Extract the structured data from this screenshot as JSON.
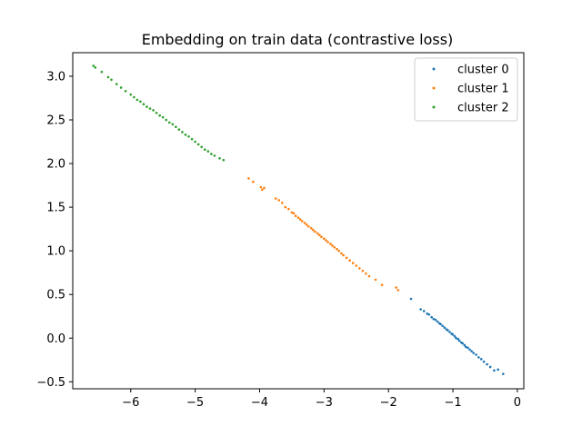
{
  "chart_data": {
    "type": "scatter",
    "title": "Embedding on train data (contrastive loss)",
    "xlabel": "",
    "ylabel": "",
    "xlim": [
      -6.9,
      0.1
    ],
    "ylim": [
      -0.58,
      3.27
    ],
    "xticks": [
      -6,
      -5,
      -4,
      -3,
      -2,
      -1,
      0
    ],
    "xtick_labels": [
      "−6",
      "−5",
      "−4",
      "−3",
      "−2",
      "−1",
      "0"
    ],
    "yticks": [
      -0.5,
      0.0,
      0.5,
      1.0,
      1.5,
      2.0,
      2.5,
      3.0
    ],
    "ytick_labels": [
      "−0.5",
      "0.0",
      "0.5",
      "1.0",
      "1.5",
      "2.0",
      "2.5",
      "3.0"
    ],
    "grid": false,
    "legend_position": "top-right",
    "series": [
      {
        "name": "cluster 0",
        "color": "#1f77b4",
        "points": [
          [
            -1.65,
            0.45
          ],
          [
            -1.5,
            0.33
          ],
          [
            -1.45,
            0.31
          ],
          [
            -1.4,
            0.28
          ],
          [
            -1.37,
            0.27
          ],
          [
            -1.33,
            0.24
          ],
          [
            -1.3,
            0.22
          ],
          [
            -1.27,
            0.21
          ],
          [
            -1.24,
            0.19
          ],
          [
            -1.21,
            0.17
          ],
          [
            -1.19,
            0.16
          ],
          [
            -1.16,
            0.14
          ],
          [
            -1.13,
            0.12
          ],
          [
            -1.1,
            0.1
          ],
          [
            -1.08,
            0.09
          ],
          [
            -1.05,
            0.07
          ],
          [
            -1.02,
            0.05
          ],
          [
            -1.0,
            0.04
          ],
          [
            -0.97,
            0.02
          ],
          [
            -0.95,
            0.0
          ],
          [
            -0.92,
            -0.01
          ],
          [
            -0.9,
            -0.03
          ],
          [
            -0.87,
            -0.05
          ],
          [
            -0.85,
            -0.06
          ],
          [
            -0.82,
            -0.08
          ],
          [
            -0.8,
            -0.1
          ],
          [
            -0.77,
            -0.11
          ],
          [
            -0.74,
            -0.13
          ],
          [
            -0.71,
            -0.15
          ],
          [
            -0.68,
            -0.17
          ],
          [
            -0.64,
            -0.19
          ],
          [
            -0.6,
            -0.22
          ],
          [
            -0.56,
            -0.24
          ],
          [
            -0.52,
            -0.27
          ],
          [
            -0.47,
            -0.3
          ],
          [
            -0.42,
            -0.33
          ],
          [
            -0.36,
            -0.37
          ],
          [
            -0.3,
            -0.36
          ],
          [
            -0.22,
            -0.41
          ]
        ]
      },
      {
        "name": "cluster 1",
        "color": "#ff7f0e",
        "points": [
          [
            -4.17,
            1.83
          ],
          [
            -4.1,
            1.79
          ],
          [
            -3.98,
            1.73
          ],
          [
            -3.96,
            1.7
          ],
          [
            -3.93,
            1.72
          ],
          [
            -3.75,
            1.6
          ],
          [
            -3.7,
            1.58
          ],
          [
            -3.65,
            1.55
          ],
          [
            -3.6,
            1.5
          ],
          [
            -3.55,
            1.48
          ],
          [
            -3.5,
            1.44
          ],
          [
            -3.47,
            1.43
          ],
          [
            -3.44,
            1.4
          ],
          [
            -3.4,
            1.38
          ],
          [
            -3.37,
            1.36
          ],
          [
            -3.34,
            1.34
          ],
          [
            -3.3,
            1.32
          ],
          [
            -3.27,
            1.3
          ],
          [
            -3.24,
            1.28
          ],
          [
            -3.2,
            1.26
          ],
          [
            -3.17,
            1.24
          ],
          [
            -3.14,
            1.22
          ],
          [
            -3.1,
            1.2
          ],
          [
            -3.07,
            1.18
          ],
          [
            -3.04,
            1.16
          ],
          [
            -3.0,
            1.14
          ],
          [
            -2.97,
            1.12
          ],
          [
            -2.94,
            1.1
          ],
          [
            -2.9,
            1.08
          ],
          [
            -2.87,
            1.06
          ],
          [
            -2.84,
            1.04
          ],
          [
            -2.8,
            1.02
          ],
          [
            -2.77,
            1.0
          ],
          [
            -2.73,
            0.97
          ],
          [
            -2.7,
            0.95
          ],
          [
            -2.65,
            0.92
          ],
          [
            -2.6,
            0.89
          ],
          [
            -2.55,
            0.86
          ],
          [
            -2.5,
            0.83
          ],
          [
            -2.45,
            0.8
          ],
          [
            -2.4,
            0.77
          ],
          [
            -2.35,
            0.74
          ],
          [
            -2.3,
            0.71
          ],
          [
            -2.2,
            0.67
          ],
          [
            -2.1,
            0.61
          ],
          [
            -1.88,
            0.58
          ],
          [
            -1.85,
            0.55
          ]
        ]
      },
      {
        "name": "cluster 2",
        "color": "#2ca02c",
        "points": [
          [
            -6.58,
            3.12
          ],
          [
            -6.55,
            3.1
          ],
          [
            -6.45,
            3.05
          ],
          [
            -6.35,
            2.99
          ],
          [
            -6.3,
            2.96
          ],
          [
            -6.22,
            2.91
          ],
          [
            -6.15,
            2.87
          ],
          [
            -6.08,
            2.83
          ],
          [
            -6.0,
            2.79
          ],
          [
            -5.95,
            2.76
          ],
          [
            -5.9,
            2.73
          ],
          [
            -5.85,
            2.71
          ],
          [
            -5.8,
            2.68
          ],
          [
            -5.75,
            2.65
          ],
          [
            -5.7,
            2.63
          ],
          [
            -5.65,
            2.61
          ],
          [
            -5.6,
            2.58
          ],
          [
            -5.55,
            2.55
          ],
          [
            -5.5,
            2.53
          ],
          [
            -5.45,
            2.5
          ],
          [
            -5.4,
            2.47
          ],
          [
            -5.35,
            2.45
          ],
          [
            -5.3,
            2.42
          ],
          [
            -5.25,
            2.39
          ],
          [
            -5.2,
            2.36
          ],
          [
            -5.15,
            2.33
          ],
          [
            -5.1,
            2.31
          ],
          [
            -5.05,
            2.28
          ],
          [
            -5.0,
            2.25
          ],
          [
            -4.95,
            2.22
          ],
          [
            -4.9,
            2.19
          ],
          [
            -4.85,
            2.16
          ],
          [
            -4.8,
            2.14
          ],
          [
            -4.75,
            2.11
          ],
          [
            -4.7,
            2.09
          ],
          [
            -4.62,
            2.06
          ],
          [
            -4.56,
            2.04
          ]
        ]
      }
    ]
  }
}
